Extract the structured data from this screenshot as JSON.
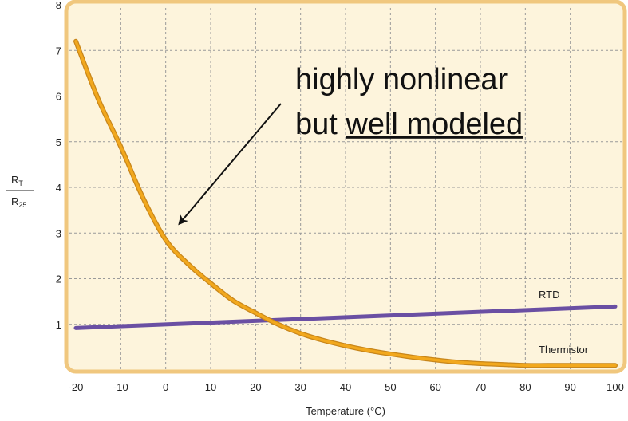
{
  "chart_data": {
    "type": "line",
    "title": "",
    "xlabel": "Temperature (°C)",
    "ylabel": {
      "num_main": "R",
      "num_sub": "T",
      "den_main": "R",
      "den_sub": "25"
    },
    "xlim": [
      -20,
      100
    ],
    "ylim": [
      0,
      8
    ],
    "xticks": [
      -20,
      -10,
      0,
      10,
      20,
      30,
      40,
      50,
      60,
      70,
      80,
      90,
      100
    ],
    "yticks": [
      1,
      2,
      3,
      4,
      5,
      6,
      7,
      8
    ],
    "grid": true,
    "series": [
      {
        "name": "RTD",
        "color": "#6a4fa3",
        "x": [
          -20,
          100
        ],
        "y": [
          0.92,
          1.39
        ]
      },
      {
        "name": "Thermistor",
        "color": "#f2a81d",
        "x": [
          -20,
          -15,
          -10,
          -5,
          0,
          5,
          10,
          15,
          20,
          25,
          30,
          35,
          40,
          45,
          50,
          55,
          60,
          65,
          70,
          75,
          80,
          85,
          90,
          95,
          100
        ],
        "y": [
          7.2,
          5.93,
          4.89,
          3.76,
          2.85,
          2.32,
          1.9,
          1.52,
          1.25,
          1.0,
          0.8,
          0.65,
          0.53,
          0.43,
          0.35,
          0.28,
          0.22,
          0.17,
          0.14,
          0.12,
          0.1,
          0.1,
          0.1,
          0.1,
          0.1
        ]
      }
    ],
    "annotation": {
      "line1": "highly nonlinear",
      "line2_plain": "but ",
      "line2_underlined": "well modeled",
      "arrow_target": {
        "x": 3,
        "y": 3.2
      }
    },
    "colors": {
      "plot_background": "#fdf4dc",
      "frame": "#f0c77e",
      "grid": "#9a9a9a"
    }
  }
}
